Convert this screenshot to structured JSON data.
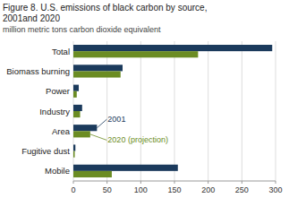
{
  "chart_data": {
    "type": "bar",
    "orientation": "horizontal",
    "title": [
      "Figure 8. U.S. emissions of black carbon by source,",
      "2001and 2020"
    ],
    "subtitle": "million metric tons carbon dioxide equivalent",
    "categories": [
      "Total",
      "Biomass burning",
      "Power",
      "Industry",
      "Area",
      "Fugitive dust",
      "Mobile"
    ],
    "series": [
      {
        "color": "#1b3a5c",
        "values": [
          295,
          73,
          8,
          13,
          35,
          3,
          155
        ]
      },
      {
        "color": "#6b8c23",
        "values": [
          185,
          70,
          5,
          10,
          25,
          2,
          57
        ]
      }
    ],
    "annotations": [
      {
        "text": "2001",
        "category": "Area"
      },
      {
        "text": "2020 (projection)",
        "category": "Area"
      }
    ],
    "xlim": [
      0,
      300
    ],
    "xticks": [
      0,
      50,
      100,
      150,
      200,
      250,
      300
    ],
    "grid": true
  }
}
